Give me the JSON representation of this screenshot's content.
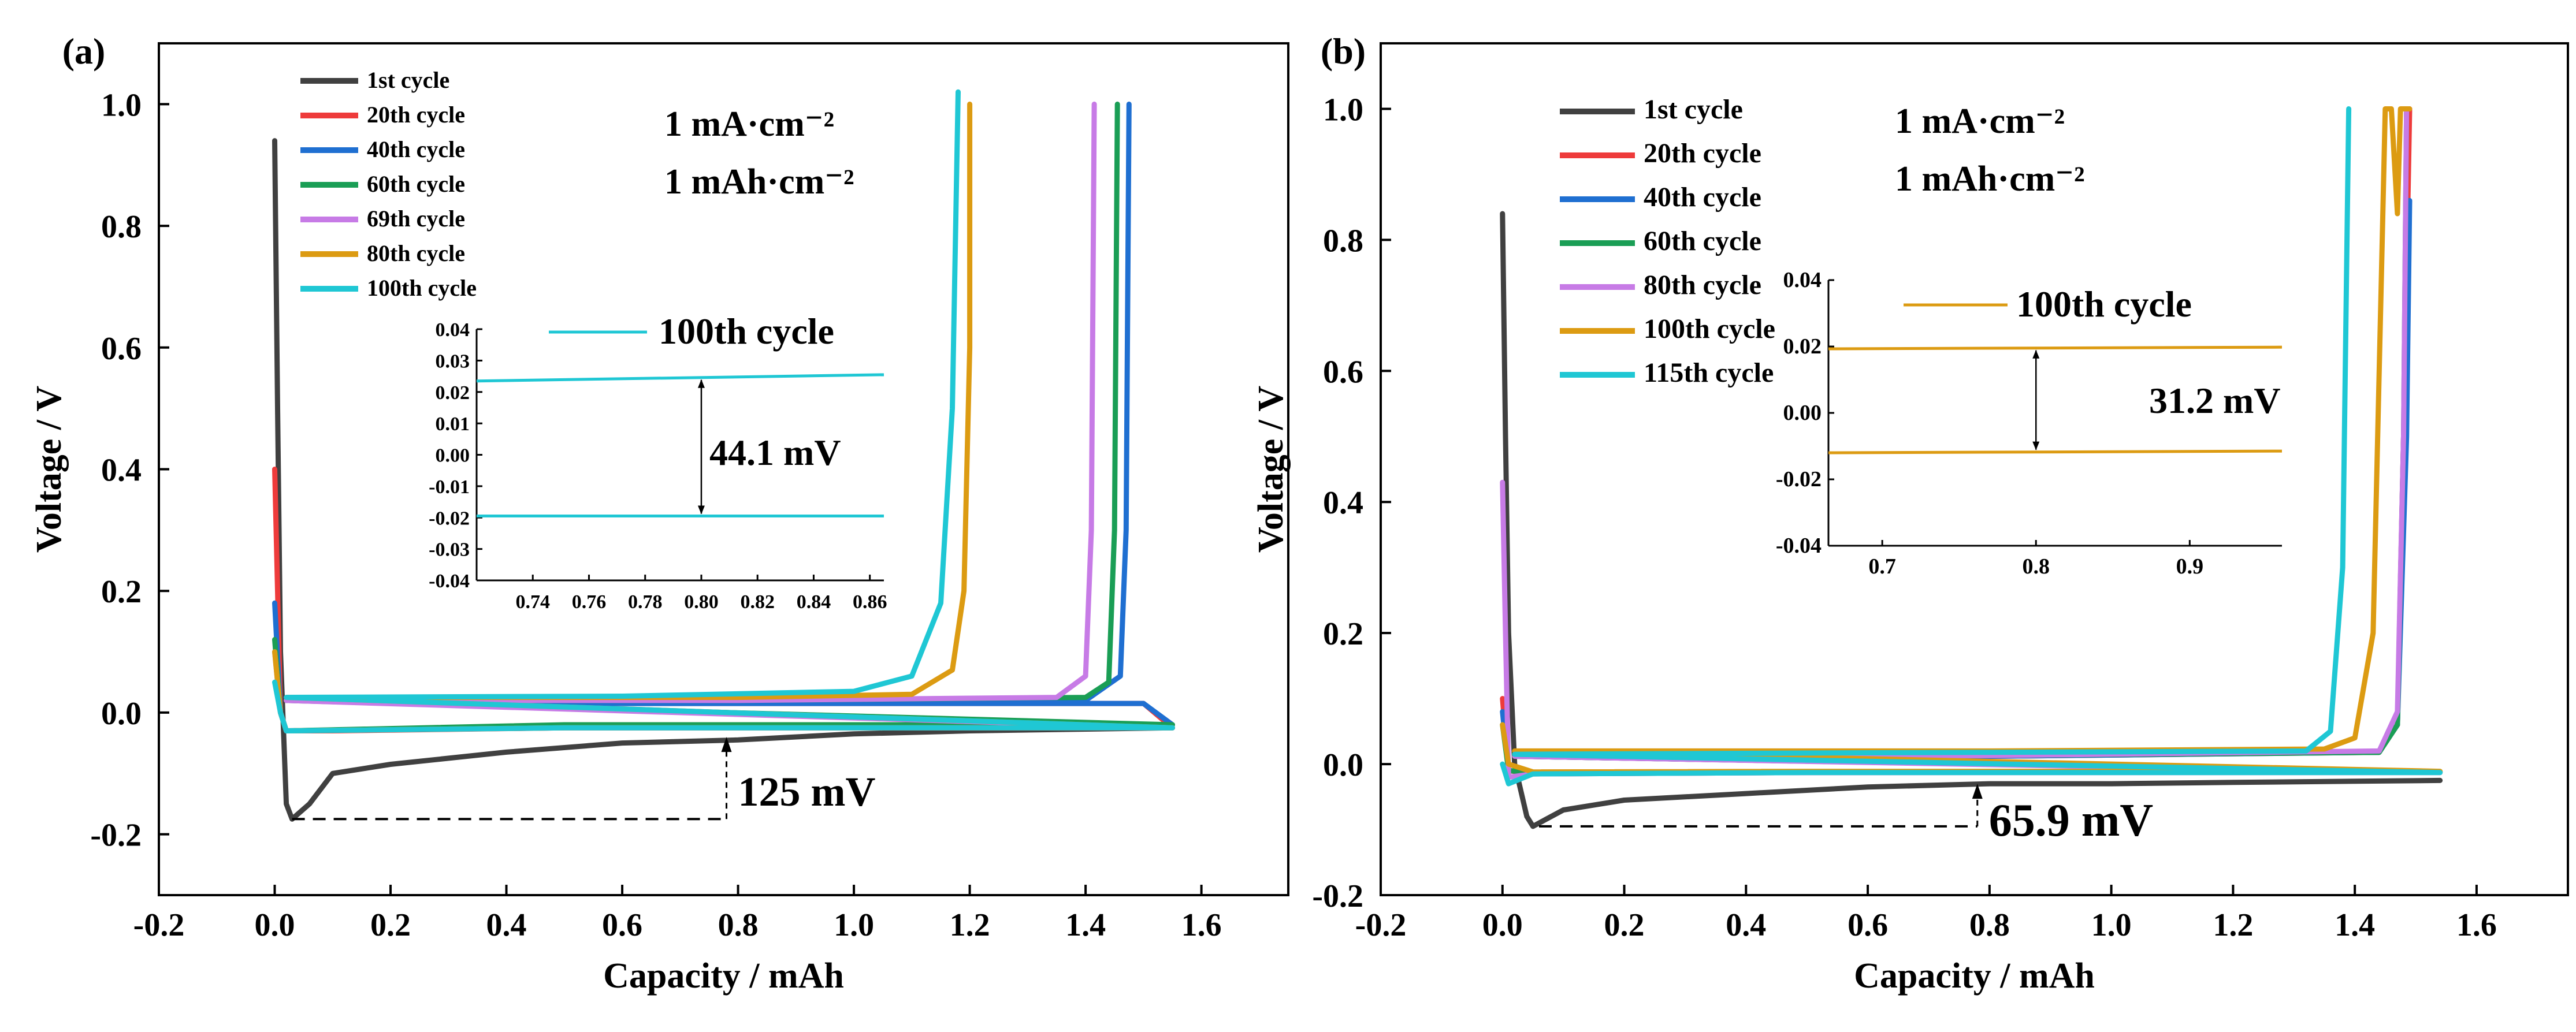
{
  "figure": {
    "panel_labels": [
      "(a)",
      "(b)"
    ]
  },
  "chart_data": [
    {
      "type": "line",
      "panel": "(a)",
      "xlabel": "Capacity / mAh",
      "ylabel": "Voltage / V",
      "xlim": [
        -0.2,
        1.75
      ],
      "ylim": [
        -0.3,
        1.1
      ],
      "xticks": [
        -0.2,
        0.0,
        0.2,
        0.4,
        0.6,
        0.8,
        1.0,
        1.2,
        1.4,
        1.6
      ],
      "yticks": [
        -0.2,
        0.0,
        0.2,
        0.4,
        0.6,
        0.8,
        1.0
      ],
      "xtick_labels": [
        "-0.2",
        "0.0",
        "0.2",
        "0.4",
        "0.6",
        "0.8",
        "1.0",
        "1.2",
        "1.4",
        "1.6"
      ],
      "ytick_labels": [
        "-0.2",
        "0.0",
        "0.2",
        "0.4",
        "0.6",
        "0.8",
        "1.0"
      ],
      "conditions": [
        "1 mA·cm⁻²",
        "1 mAh·cm⁻²"
      ],
      "legend_position": "top-left",
      "series": [
        {
          "name": "1st cycle",
          "color": "#404040",
          "points": [
            [
              0.0,
              0.94
            ],
            [
              0.005,
              0.5
            ],
            [
              0.01,
              0.1
            ],
            [
              0.02,
              -0.15
            ],
            [
              0.03,
              -0.175
            ],
            [
              0.06,
              -0.15
            ],
            [
              0.1,
              -0.1
            ],
            [
              0.2,
              -0.085
            ],
            [
              0.4,
              -0.065
            ],
            [
              0.6,
              -0.05
            ],
            [
              0.8,
              -0.045
            ],
            [
              1.0,
              -0.035
            ],
            [
              1.2,
              -0.03
            ],
            [
              1.55,
              -0.025
            ]
          ]
        },
        {
          "name": "20th cycle",
          "color": "#ee3b3b",
          "points": [
            [
              0.0,
              0.4
            ],
            [
              0.005,
              0.2
            ],
            [
              0.01,
              0.0
            ],
            [
              0.02,
              -0.03
            ],
            [
              0.1,
              -0.03
            ],
            [
              0.5,
              -0.025
            ],
            [
              1.0,
              -0.025
            ],
            [
              1.55,
              -0.025
            ],
            [
              1.5,
              0.015
            ],
            [
              1.0,
              0.015
            ],
            [
              0.5,
              0.015
            ],
            [
              0.02,
              0.02
            ]
          ]
        },
        {
          "name": "40th cycle",
          "color": "#1f6fd1",
          "points": [
            [
              0.0,
              0.18
            ],
            [
              0.01,
              0.0
            ],
            [
              0.02,
              -0.03
            ],
            [
              0.5,
              -0.022
            ],
            [
              1.0,
              -0.02
            ],
            [
              1.55,
              -0.02
            ],
            [
              1.5,
              0.015
            ],
            [
              1.0,
              0.015
            ],
            [
              0.5,
              0.015
            ],
            [
              0.02,
              0.02
            ],
            [
              0.8,
              0.018
            ],
            [
              1.4,
              0.02
            ],
            [
              1.46,
              0.06
            ],
            [
              1.47,
              0.3
            ],
            [
              1.475,
              1.0
            ]
          ]
        },
        {
          "name": "60th cycle",
          "color": "#1a9e55",
          "points": [
            [
              0.0,
              0.12
            ],
            [
              0.01,
              0.0
            ],
            [
              0.02,
              -0.03
            ],
            [
              0.5,
              -0.02
            ],
            [
              1.55,
              -0.02
            ],
            [
              0.02,
              0.02
            ],
            [
              0.8,
              0.02
            ],
            [
              1.4,
              0.025
            ],
            [
              1.44,
              0.05
            ],
            [
              1.45,
              0.3
            ],
            [
              1.455,
              1.0
            ]
          ]
        },
        {
          "name": "69th cycle",
          "color": "#c77be6",
          "points": [
            [
              0.0,
              0.1
            ],
            [
              0.01,
              0.0
            ],
            [
              0.02,
              -0.03
            ],
            [
              0.5,
              -0.025
            ],
            [
              1.55,
              -0.025
            ],
            [
              0.02,
              0.02
            ],
            [
              0.8,
              0.02
            ],
            [
              1.35,
              0.025
            ],
            [
              1.4,
              0.06
            ],
            [
              1.41,
              0.3
            ],
            [
              1.415,
              1.0
            ]
          ]
        },
        {
          "name": "80th cycle",
          "color": "#dc9b12",
          "points": [
            [
              0.0,
              0.1
            ],
            [
              0.01,
              0.0
            ],
            [
              0.02,
              -0.03
            ],
            [
              0.5,
              -0.025
            ],
            [
              1.55,
              -0.025
            ],
            [
              0.02,
              0.025
            ],
            [
              0.8,
              0.025
            ],
            [
              1.1,
              0.03
            ],
            [
              1.17,
              0.07
            ],
            [
              1.19,
              0.2
            ],
            [
              1.2,
              0.6
            ],
            [
              1.2,
              1.0
            ]
          ]
        },
        {
          "name": "100th cycle",
          "color": "#1fc7d4",
          "points": [
            [
              0.0,
              0.05
            ],
            [
              0.01,
              0.0
            ],
            [
              0.02,
              -0.03
            ],
            [
              0.5,
              -0.025
            ],
            [
              1.55,
              -0.025
            ],
            [
              0.02,
              0.025
            ],
            [
              0.6,
              0.027
            ],
            [
              1.0,
              0.035
            ],
            [
              1.1,
              0.06
            ],
            [
              1.15,
              0.18
            ],
            [
              1.17,
              0.5
            ],
            [
              1.18,
              1.02
            ]
          ]
        }
      ],
      "annotations": [
        {
          "text": "125 mV",
          "x1": 0.03,
          "y1": -0.175,
          "x2": 0.78,
          "y2": -0.04
        }
      ],
      "inset": {
        "xlim": [
          0.72,
          0.865
        ],
        "ylim": [
          -0.04,
          0.04
        ],
        "xticks": [
          0.74,
          0.76,
          0.78,
          0.8,
          0.82,
          0.84,
          0.86
        ],
        "xtick_labels": [
          "0.74",
          "0.76",
          "0.78",
          "0.80",
          "0.82",
          "0.84",
          "0.86"
        ],
        "yticks": [
          -0.04,
          -0.03,
          -0.02,
          -0.01,
          0.0,
          0.01,
          0.02,
          0.03,
          0.04
        ],
        "ytick_labels": [
          "-0.04",
          "-0.03",
          "-0.02",
          "-0.01",
          "0.00",
          "0.01",
          "0.02",
          "0.03",
          "0.04"
        ],
        "legend": "100th cycle",
        "color": "#1fc7d4",
        "upper": [
          [
            0.72,
            0.0235
          ],
          [
            0.865,
            0.0255
          ]
        ],
        "lower": [
          [
            0.72,
            -0.0195
          ],
          [
            0.865,
            -0.0195
          ]
        ],
        "annotation_text": "44.1 mV",
        "arrow_x": 0.8
      }
    },
    {
      "type": "line",
      "panel": "(b)",
      "xlabel": "Capacity / mAh",
      "ylabel": "Voltage / V",
      "xlim": [
        -0.2,
        1.75
      ],
      "ylim": [
        -0.2,
        1.1
      ],
      "xticks": [
        -0.2,
        0.0,
        0.2,
        0.4,
        0.6,
        0.8,
        1.0,
        1.2,
        1.4,
        1.6
      ],
      "yticks": [
        -0.2,
        0.0,
        0.2,
        0.4,
        0.6,
        0.8,
        1.0
      ],
      "xtick_labels": [
        "-0.2",
        "0.0",
        "0.2",
        "0.4",
        "0.6",
        "0.8",
        "1.0",
        "1.2",
        "1.4",
        "1.6"
      ],
      "ytick_labels": [
        "-0.2",
        "0.0",
        "0.2",
        "0.4",
        "0.6",
        "0.8",
        "1.0"
      ],
      "conditions": [
        "1 mA·cm⁻²",
        "1 mAh·cm⁻²"
      ],
      "legend_position": "top-left",
      "series": [
        {
          "name": "1st cycle",
          "color": "#404040",
          "points": [
            [
              0.0,
              0.84
            ],
            [
              0.005,
              0.5
            ],
            [
              0.01,
              0.2
            ],
            [
              0.02,
              0.0
            ],
            [
              0.04,
              -0.08
            ],
            [
              0.05,
              -0.095
            ],
            [
              0.07,
              -0.085
            ],
            [
              0.1,
              -0.07
            ],
            [
              0.2,
              -0.055
            ],
            [
              0.4,
              -0.045
            ],
            [
              0.6,
              -0.035
            ],
            [
              0.8,
              -0.03
            ],
            [
              1.0,
              -0.03
            ],
            [
              1.2,
              -0.028
            ],
            [
              1.54,
              -0.025
            ]
          ]
        },
        {
          "name": "20th cycle",
          "color": "#ee3b3b",
          "points": [
            [
              0.0,
              0.1
            ],
            [
              0.01,
              -0.01
            ],
            [
              0.05,
              -0.015
            ],
            [
              0.5,
              -0.013
            ],
            [
              1.54,
              -0.012
            ],
            [
              0.02,
              0.012
            ],
            [
              0.8,
              0.012
            ],
            [
              1.44,
              0.018
            ],
            [
              1.47,
              0.06
            ],
            [
              1.48,
              0.5
            ],
            [
              1.49,
              1.0
            ]
          ]
        },
        {
          "name": "40th cycle",
          "color": "#1f6fd1",
          "points": [
            [
              0.0,
              0.08
            ],
            [
              0.01,
              -0.01
            ],
            [
              0.05,
              -0.013
            ],
            [
              0.5,
              -0.012
            ],
            [
              1.54,
              -0.012
            ],
            [
              0.02,
              0.012
            ],
            [
              0.8,
              0.012
            ],
            [
              1.44,
              0.018
            ],
            [
              1.47,
              0.06
            ],
            [
              1.485,
              0.5
            ],
            [
              1.49,
              0.86
            ]
          ]
        },
        {
          "name": "60th cycle",
          "color": "#1a9e55",
          "points": [
            [
              0.0,
              0.06
            ],
            [
              0.01,
              -0.01
            ],
            [
              0.05,
              -0.013
            ],
            [
              0.5,
              -0.012
            ],
            [
              1.54,
              -0.012
            ],
            [
              0.02,
              0.012
            ],
            [
              0.8,
              0.013
            ],
            [
              1.44,
              0.018
            ],
            [
              1.47,
              0.06
            ],
            [
              1.48,
              0.5
            ],
            [
              1.485,
              1.0
            ]
          ]
        },
        {
          "name": "80th cycle",
          "color": "#c77be6",
          "points": [
            [
              0.0,
              0.43
            ],
            [
              0.005,
              0.2
            ],
            [
              0.01,
              -0.02
            ],
            [
              0.05,
              -0.015
            ],
            [
              0.5,
              -0.013
            ],
            [
              1.54,
              -0.013
            ],
            [
              0.02,
              0.012
            ],
            [
              0.8,
              0.013
            ],
            [
              1.44,
              0.02
            ],
            [
              1.47,
              0.08
            ],
            [
              1.48,
              0.5
            ],
            [
              1.485,
              1.0
            ]
          ]
        },
        {
          "name": "100th cycle",
          "color": "#dc9b12",
          "points": [
            [
              0.0,
              0.06
            ],
            [
              0.01,
              0.0
            ],
            [
              0.05,
              -0.012
            ],
            [
              0.5,
              -0.011
            ],
            [
              1.54,
              -0.011
            ],
            [
              0.02,
              0.02
            ],
            [
              0.8,
              0.02
            ],
            [
              1.35,
              0.023
            ],
            [
              1.4,
              0.04
            ],
            [
              1.43,
              0.2
            ],
            [
              1.445,
              0.8
            ],
            [
              1.45,
              1.0
            ],
            [
              1.46,
              1.0
            ],
            [
              1.47,
              0.84
            ],
            [
              1.475,
              1.0
            ],
            [
              1.49,
              1.0
            ]
          ]
        },
        {
          "name": "115th cycle",
          "color": "#1fc7d4",
          "points": [
            [
              0.0,
              0.0
            ],
            [
              0.01,
              -0.03
            ],
            [
              0.05,
              -0.015
            ],
            [
              0.5,
              -0.013
            ],
            [
              1.54,
              -0.013
            ],
            [
              0.02,
              0.015
            ],
            [
              0.8,
              0.018
            ],
            [
              1.32,
              0.02
            ],
            [
              1.36,
              0.05
            ],
            [
              1.38,
              0.3
            ],
            [
              1.39,
              1.0
            ]
          ]
        }
      ],
      "annotations": [
        {
          "text": "65.9 mV",
          "x1": 0.06,
          "y1": -0.095,
          "x2": 0.78,
          "y2": -0.03
        }
      ],
      "inset": {
        "xlim": [
          0.665,
          0.96
        ],
        "ylim": [
          -0.04,
          0.04
        ],
        "xticks": [
          0.7,
          0.8,
          0.9
        ],
        "xtick_labels": [
          "0.7",
          "0.8",
          "0.9"
        ],
        "yticks": [
          -0.04,
          -0.02,
          0.0,
          0.02,
          0.04
        ],
        "ytick_labels": [
          "-0.04",
          "-0.02",
          "0.00",
          "0.02",
          "0.04"
        ],
        "legend": "100th cycle",
        "color": "#dc9b12",
        "upper": [
          [
            0.665,
            0.0193
          ],
          [
            0.96,
            0.0198
          ]
        ],
        "lower": [
          [
            0.665,
            -0.012
          ],
          [
            0.96,
            -0.0115
          ]
        ],
        "annotation_text": "31.2 mV",
        "arrow_x": 0.8
      }
    }
  ]
}
